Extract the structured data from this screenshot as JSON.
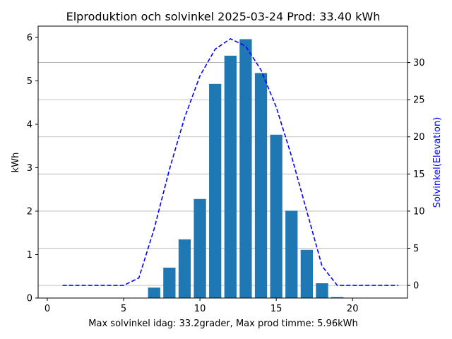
{
  "chart_data": {
    "type": "bar",
    "title": "Elproduktion och solvinkel 2025-03-24 Prod: 33.40 kWh",
    "xlabel": "Max solvinkel idag: 33.2grader, Max prod timme: 5.96kWh",
    "ylabel": "kWh",
    "y2label": "Solvinkel(Elevation)",
    "xlim": [
      -0.6,
      23.6
    ],
    "ylim": [
      0,
      6.26
    ],
    "y2lim": [
      -1.7,
      34.9
    ],
    "xticks": [
      0,
      5,
      10,
      15,
      20
    ],
    "yticks": [
      0,
      1,
      2,
      3,
      4,
      5,
      6
    ],
    "y2ticks": [
      0,
      5,
      10,
      15,
      20,
      25,
      30
    ],
    "grid": "horizontal lines at right-axis ticks",
    "bar_color": "#1f77b4",
    "line_color": "#0000ff",
    "series": [
      {
        "type": "bar",
        "x": [
          6,
          7,
          8,
          9,
          10,
          11,
          12,
          13,
          14,
          15,
          16,
          17,
          18,
          19
        ],
        "values": [
          0.0,
          0.24,
          0.7,
          1.35,
          2.28,
          4.93,
          5.58,
          5.96,
          5.18,
          3.76,
          2.01,
          1.11,
          0.34,
          0.02
        ]
      },
      {
        "type": "line",
        "axis": "right",
        "style": "dashed",
        "x": [
          1,
          2,
          3,
          4,
          5,
          6,
          7,
          8,
          9,
          10,
          11,
          12,
          13,
          14,
          15,
          16,
          17,
          18,
          19,
          20,
          21,
          22,
          23
        ],
        "values": [
          0,
          0,
          0,
          0,
          0,
          1.0,
          7.6,
          15.6,
          22.6,
          28.2,
          31.8,
          33.2,
          32.2,
          29.0,
          24.0,
          17.4,
          10.0,
          2.6,
          0,
          0,
          0,
          0,
          0
        ]
      }
    ]
  }
}
